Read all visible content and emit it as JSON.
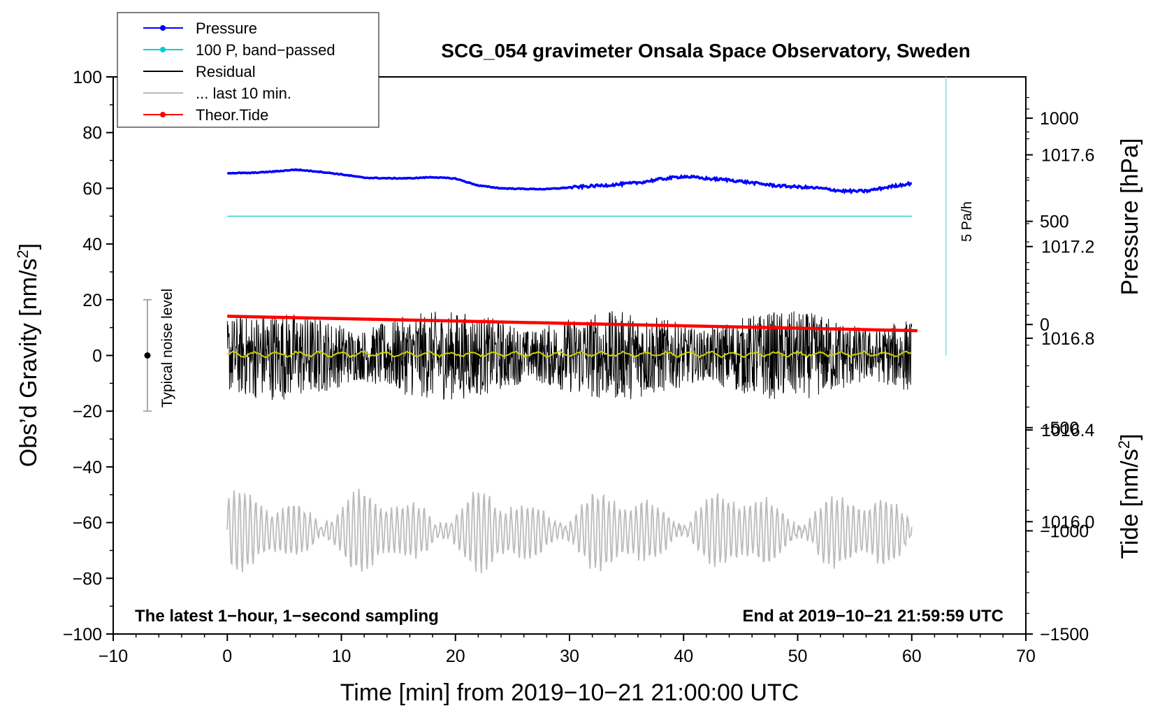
{
  "chart_data": {
    "type": "line",
    "title": "SCG_054 gravimeter Onsala Space Observatory, Sweden",
    "xlabel": "Time [min] from 2019−10−21 21:00:00 UTC",
    "ylabel_left_text": "Obs’d Gravity [nm/s",
    "ylabel_left_sup": "2",
    "ylabel_left_close": "]",
    "ylabel_right_top": "Pressure [hPa]",
    "ylabel_right_bottom_text": "Tide [nm/s",
    "ylabel_right_bottom_sup": "2",
    "ylabel_right_bottom_close": "]",
    "xlim": [
      -10,
      70
    ],
    "ylim": [
      -100,
      100
    ],
    "x_ticks": [
      -10,
      0,
      10,
      20,
      30,
      40,
      50,
      60,
      70
    ],
    "x_tick_labels": [
      "−10",
      "0",
      "10",
      "20",
      "30",
      "40",
      "50",
      "60",
      "70"
    ],
    "y_ticks": [
      -100,
      -80,
      -60,
      -40,
      -20,
      0,
      20,
      40,
      60,
      80,
      100
    ],
    "y_tick_labels": [
      "−100",
      "−80",
      "−60",
      "−40",
      "−20",
      "0",
      "20",
      "40",
      "60",
      "80",
      "100"
    ],
    "pressure_axis": {
      "ticks": [
        1016.0,
        1016.4,
        1016.8,
        1017.2,
        1017.6
      ],
      "tick_labels": [
        "1016.0",
        "1016.4",
        "1016.8",
        "1017.2",
        "1017.6"
      ],
      "range": [
        1015.51,
        1017.94
      ]
    },
    "tide_axis": {
      "ticks": [
        -1500,
        -1000,
        -500,
        0,
        500,
        1000
      ],
      "tick_labels": [
        "−1500",
        "−1000",
        "−500",
        "0",
        "500",
        "1000"
      ],
      "range": [
        -1500,
        1200
      ]
    },
    "legend": {
      "position": "top-left",
      "entries": [
        {
          "label": "Pressure",
          "color": "#0000ff",
          "marker": true
        },
        {
          "label": "100 P, band−passed",
          "color": "#00d0d0",
          "marker": true
        },
        {
          "label": "Residual",
          "color": "#000000",
          "marker": false
        },
        {
          "label": "... last 10 min.",
          "color": "#bbbbbb",
          "marker": false
        },
        {
          "label": "Theor.Tide",
          "color": "#ff0000",
          "marker": true
        }
      ]
    },
    "series": [
      {
        "name": "Pressure",
        "color": "#0000ff",
        "axis": "gravity",
        "x": [
          0,
          2,
          4,
          6,
          8,
          10,
          12,
          14,
          16,
          18,
          20,
          22,
          24,
          26,
          28,
          30,
          32,
          34,
          36,
          38,
          40,
          42,
          44,
          46,
          48,
          50,
          52,
          54,
          56,
          58,
          60
        ],
        "y": [
          65.5,
          65.5,
          66,
          66.7,
          66,
          65,
          63.8,
          63.6,
          63.6,
          64,
          63.5,
          61,
          60,
          59.8,
          59.7,
          60.3,
          60.8,
          61.3,
          62,
          63.3,
          64.3,
          63.5,
          63,
          62,
          61,
          60.5,
          60,
          59,
          59,
          60.5,
          61.8
        ]
      },
      {
        "name": "100 P, band−passed",
        "color": "#00d0d0",
        "axis": "gravity",
        "x": [
          0,
          60
        ],
        "y": [
          50,
          50
        ]
      },
      {
        "name": "Residual",
        "color": "#000000",
        "axis": "gravity",
        "x_range": [
          0,
          60
        ],
        "amplitude_approx": 16,
        "center": 0
      },
      {
        "name": "Residual smoothed",
        "color": "#d0d000",
        "axis": "gravity",
        "x_range": [
          0,
          60
        ],
        "amplitude_approx": 1.2,
        "center": 0.5
      },
      {
        "name": "... last 10 min.",
        "color": "#bbbbbb",
        "axis": "gravity",
        "x_range": [
          0,
          60
        ],
        "center": -63,
        "amplitude_approx": 15
      },
      {
        "name": "Theor.Tide",
        "color": "#ff0000",
        "axis": "tide",
        "x": [
          0,
          60.5
        ],
        "y": [
          40,
          -30
        ]
      }
    ],
    "annotations": {
      "noise_label": "Typical noise level",
      "noise_bar": {
        "x": -7,
        "center": 0,
        "low": -20,
        "high": 20
      },
      "rate_label": "5 Pa/h",
      "rate_line": {
        "x": 63,
        "y_low": 0,
        "y_high": 100
      },
      "bottom_left": "The latest 1−hour, 1−second sampling",
      "bottom_right": "End at 2019−10−21 21:59:59 UTC"
    }
  }
}
